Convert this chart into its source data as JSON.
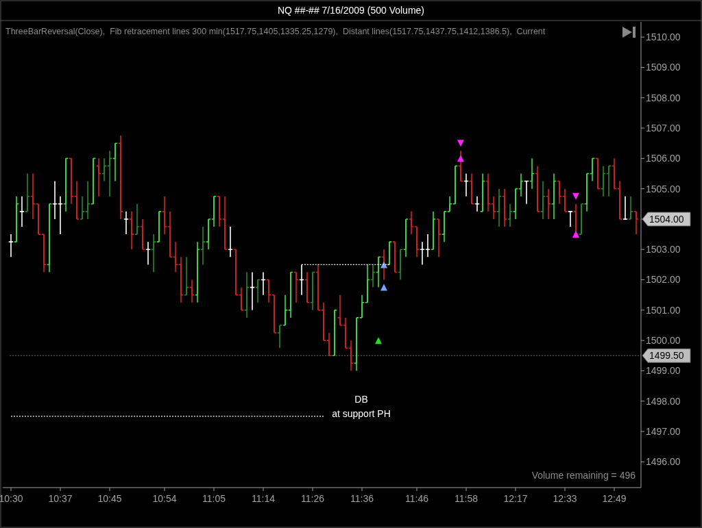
{
  "chart_data": {
    "type": "candlestick",
    "title": "NQ ##-##  7/16/2009 (500 Volume)",
    "subtitle": "ThreeBarReversal(Close),  Fib retracement lines 300 min(1517.75,1405,1335.25,1279),  Distant lines(1517.75,1437.75,1412,1386.5),  Current",
    "categories": [
      "10:30",
      null,
      null,
      null,
      null,
      null,
      null,
      null,
      null,
      "10:37",
      null,
      null,
      null,
      null,
      null,
      null,
      null,
      null,
      "10:45",
      null,
      null,
      null,
      null,
      null,
      null,
      null,
      null,
      null,
      "10:54",
      null,
      null,
      null,
      null,
      null,
      null,
      null,
      null,
      "11:05",
      null,
      null,
      null,
      null,
      null,
      null,
      null,
      null,
      "11:14",
      null,
      null,
      null,
      null,
      null,
      null,
      null,
      null,
      "11:26",
      null,
      null,
      null,
      null,
      null,
      null,
      null,
      null,
      "11:36",
      null,
      null,
      null,
      null,
      null,
      null,
      null,
      null,
      null,
      "11:46",
      null,
      null,
      null,
      null,
      null,
      null,
      null,
      null,
      "11:58",
      null,
      null,
      null,
      null,
      null,
      null,
      null,
      null,
      "12:17",
      null,
      null,
      null,
      null,
      null,
      null,
      null,
      null,
      "12:33",
      null,
      null,
      null,
      null,
      null,
      null,
      null,
      null,
      "12:49",
      null,
      null,
      null,
      null
    ],
    "ohlc": [
      [
        1503.25,
        1503.5,
        1502.75,
        1503.25
      ],
      [
        1503.25,
        1504.75,
        1503.25,
        1504.5
      ],
      [
        1504.25,
        1504.75,
        1503.75,
        1504.25
      ],
      [
        1504.25,
        1505.5,
        1504.25,
        1504.75
      ],
      [
        1504.75,
        1505.5,
        1504,
        1504.5
      ],
      [
        1504.5,
        1504.5,
        1503.5,
        1503.5
      ],
      [
        1503.5,
        1503.5,
        1502.25,
        1502.5
      ],
      [
        1502.5,
        1504.5,
        1502.25,
        1504.5
      ],
      [
        1504.5,
        1505.25,
        1504,
        1504.5
      ],
      [
        1504.5,
        1504.75,
        1503.5,
        1504.5
      ],
      [
        1504.5,
        1506,
        1504.25,
        1506
      ],
      [
        1506,
        1506,
        1504.5,
        1504.75
      ],
      [
        1504.75,
        1505.25,
        1504,
        1504
      ],
      [
        1504,
        1504.75,
        1504,
        1504.25
      ],
      [
        1504.25,
        1505.25,
        1504,
        1504.5
      ],
      [
        1504.5,
        1506,
        1504.5,
        1506
      ],
      [
        1505.75,
        1506,
        1504.75,
        1505.5
      ],
      [
        1505.5,
        1506,
        1505.25,
        1505.75
      ],
      [
        1505.75,
        1506.25,
        1504.75,
        1506
      ],
      [
        1506,
        1506.5,
        1505.25,
        1506.5
      ],
      [
        1506.5,
        1506.75,
        1504,
        1504.25
      ],
      [
        1504,
        1504.25,
        1503.5,
        1504
      ],
      [
        1504,
        1504.25,
        1503,
        1503.5
      ],
      [
        1503.5,
        1504.5,
        1503.5,
        1503.75
      ],
      [
        1503.75,
        1504,
        1503,
        1503
      ],
      [
        1503,
        1503.25,
        1502.5,
        1503
      ],
      [
        1503,
        1503.5,
        1502.25,
        1503.25
      ],
      [
        1503.25,
        1504.25,
        1503.25,
        1504.25
      ],
      [
        1504.25,
        1504.75,
        1503.5,
        1503.75
      ],
      [
        1503.75,
        1504.25,
        1502.75,
        1502.75
      ],
      [
        1502.75,
        1503.25,
        1502.25,
        1502.5
      ],
      [
        1502.5,
        1502.75,
        1501.25,
        1501.5
      ],
      [
        1501.5,
        1502.75,
        1501.5,
        1501.75
      ],
      [
        1501.75,
        1502,
        1501.25,
        1501.5
      ],
      [
        1501.5,
        1503.25,
        1501.25,
        1503
      ],
      [
        1503,
        1503.75,
        1502.5,
        1503.25
      ],
      [
        1503.25,
        1504,
        1503,
        1504
      ],
      [
        1504,
        1504.75,
        1503.75,
        1504.75
      ],
      [
        1504.75,
        1504.75,
        1503.75,
        1504
      ],
      [
        1504,
        1504.75,
        1503,
        1503
      ],
      [
        1503,
        1503.75,
        1502.75,
        1503
      ],
      [
        1503,
        1503,
        1501.5,
        1501.5
      ],
      [
        1501.5,
        1501.75,
        1501,
        1501
      ],
      [
        1501,
        1502.25,
        1500.75,
        1501.75
      ],
      [
        1501.75,
        1502.25,
        1501,
        1501.75
      ],
      [
        1501.75,
        1502,
        1501.25,
        1502
      ],
      [
        1502,
        1502.25,
        1501.5,
        1502
      ],
      [
        1502,
        1502,
        1501.25,
        1501.5
      ],
      [
        1501.5,
        1501.5,
        1500.25,
        1500.25
      ],
      [
        1500.25,
        1500.5,
        1499.75,
        1500.5
      ],
      [
        1500.5,
        1501.5,
        1500.5,
        1501
      ],
      [
        1501,
        1502.25,
        1500.75,
        1502.25
      ],
      [
        1502.25,
        1502.25,
        1501.25,
        1502
      ],
      [
        1502,
        1502.5,
        1501.5,
        1502
      ],
      [
        1502,
        1502.25,
        1501.25,
        1501.25
      ],
      [
        1501.25,
        1502.25,
        1501,
        1502.25
      ],
      [
        1502.25,
        1502.5,
        1501,
        1501
      ],
      [
        1501,
        1501.25,
        1500,
        1500
      ],
      [
        1500,
        1500.25,
        1499.5,
        1499.5
      ],
      [
        1499.5,
        1501,
        1499.5,
        1501
      ],
      [
        1500.75,
        1501.5,
        1500.5,
        1500.5
      ],
      [
        1500.5,
        1500.75,
        1499.75,
        1499.75
      ],
      [
        1499.75,
        1500,
        1499,
        1499.25
      ],
      [
        1499.25,
        1500.75,
        1499,
        1500.75
      ],
      [
        1500.75,
        1501.5,
        1500.75,
        1501.25
      ],
      [
        1501.25,
        1502.5,
        1501.25,
        1502
      ],
      [
        1502,
        1502.5,
        1501.75,
        1502.25
      ],
      [
        1502.25,
        1502.75,
        1501.75,
        1502.75
      ],
      [
        1502.75,
        1503,
        1502,
        1502.5
      ],
      [
        1502.5,
        1503.25,
        1502.5,
        1503.25
      ],
      [
        1503.25,
        1503.25,
        1502.25,
        1502.25
      ],
      [
        1502.25,
        1503,
        1502,
        1503
      ],
      [
        1503,
        1504,
        1502.75,
        1504
      ],
      [
        1504,
        1504.25,
        1503.5,
        1503.75
      ],
      [
        1503.75,
        1503.75,
        1502.75,
        1503
      ],
      [
        1503,
        1503.25,
        1502.5,
        1503
      ],
      [
        1503,
        1503.5,
        1502.75,
        1503
      ],
      [
        1503,
        1504.25,
        1503,
        1504
      ],
      [
        1504,
        1504,
        1502.75,
        1503.5
      ],
      [
        1503.5,
        1504.25,
        1503.25,
        1504.25
      ],
      [
        1504.25,
        1504.75,
        1504.25,
        1504.5
      ],
      [
        1504.5,
        1505.75,
        1504.5,
        1505.75
      ],
      [
        1505.75,
        1506.25,
        1505.25,
        1505.25
      ],
      [
        1505.25,
        1505.5,
        1504.75,
        1505.25
      ],
      [
        1505.25,
        1505.5,
        1504.5,
        1504.5
      ],
      [
        1504.5,
        1504.75,
        1504.25,
        1504.5
      ],
      [
        1504.25,
        1505.5,
        1504.25,
        1505.25
      ],
      [
        1505.25,
        1505.5,
        1504.25,
        1504.5
      ],
      [
        1504.5,
        1504.75,
        1504,
        1504.25
      ],
      [
        1504.25,
        1505,
        1503.75,
        1504.75
      ],
      [
        1504.75,
        1505,
        1503.75,
        1504
      ],
      [
        1504,
        1504.5,
        1503.75,
        1504.25
      ],
      [
        1504.25,
        1505,
        1504,
        1505
      ],
      [
        1505,
        1505.5,
        1504.75,
        1505.25
      ],
      [
        1505.25,
        1505.25,
        1504.5,
        1505.25
      ],
      [
        1505.25,
        1506,
        1505,
        1505.5
      ],
      [
        1505.5,
        1505.75,
        1504.25,
        1504.25
      ],
      [
        1504.25,
        1505.25,
        1504,
        1504.75
      ],
      [
        1504.75,
        1505,
        1504,
        1504.5
      ],
      [
        1504.5,
        1505.5,
        1504,
        1505.25
      ],
      [
        1505.25,
        1505.25,
        1504.5,
        1504.75
      ],
      [
        1504.75,
        1505,
        1504.25,
        1504.25
      ],
      [
        1504.25,
        1504.25,
        1503.75,
        1504.25
      ],
      [
        1504.25,
        1504.5,
        1503.5,
        1503.5
      ],
      [
        1503.5,
        1504.5,
        1503.5,
        1504.5
      ],
      [
        1504.5,
        1505.5,
        1504.25,
        1505.5
      ],
      [
        1505.5,
        1506,
        1505.25,
        1506
      ],
      [
        1506,
        1506,
        1505,
        1505
      ],
      [
        1505,
        1505.75,
        1504.75,
        1505.5
      ],
      [
        1505.5,
        1505.75,
        1504.75,
        1505.75
      ],
      [
        1505.75,
        1506,
        1505,
        1505
      ],
      [
        1505,
        1505.25,
        1504,
        1504
      ],
      [
        1504,
        1504.75,
        1504,
        1504
      ],
      [
        1504,
        1504.75,
        1504,
        1504.25
      ],
      [
        1504.25,
        1504.25,
        1503.5,
        1504
      ]
    ],
    "colors": [
      "#ffffff",
      "#32e632",
      "#ffffff",
      "#228b22",
      "#dc1e1e",
      "#dc1e1e",
      "#dc1e1e",
      "#32e632",
      "#ffffff",
      "#ffffff",
      "#32e632",
      "#dc1e1e",
      "#dc1e1e",
      "#228b22",
      "#228b22",
      "#32e632",
      "#dc1e1e",
      "#228b22",
      "#228b22",
      "#32e632",
      "#dc1e1e",
      "#ffffff",
      "#dc1e1e",
      "#228b22",
      "#dc1e1e",
      "#ffffff",
      "#228b22",
      "#32e632",
      "#dc1e1e",
      "#dc1e1e",
      "#dc1e1e",
      "#dc1e1e",
      "#228b22",
      "#dc1e1e",
      "#32e632",
      "#228b22",
      "#32e632",
      "#32e632",
      "#dc1e1e",
      "#dc1e1e",
      "#ffffff",
      "#dc1e1e",
      "#dc1e1e",
      "#228b22",
      "#ffffff",
      "#228b22",
      "#ffffff",
      "#dc1e1e",
      "#dc1e1e",
      "#228b22",
      "#32e632",
      "#32e632",
      "#dc1e1e",
      "#ffffff",
      "#dc1e1e",
      "#228b22",
      "#dc1e1e",
      "#dc1e1e",
      "#dc1e1e",
      "#32e632",
      "#dc1e1e",
      "#dc1e1e",
      "#dc1e1e",
      "#32e632",
      "#32e632",
      "#32e632",
      "#228b22",
      "#32e632",
      "#dc1e1e",
      "#32e632",
      "#dc1e1e",
      "#228b22",
      "#32e632",
      "#dc1e1e",
      "#dc1e1e",
      "#ffffff",
      "#ffffff",
      "#32e632",
      "#dc1e1e",
      "#32e632",
      "#32e632",
      "#32e632",
      "#dc1e1e",
      "#ffffff",
      "#dc1e1e",
      "#ffffff",
      "#32e632",
      "#dc1e1e",
      "#dc1e1e",
      "#228b22",
      "#dc1e1e",
      "#228b22",
      "#32e632",
      "#32e632",
      "#ffffff",
      "#32e632",
      "#dc1e1e",
      "#228b22",
      "#dc1e1e",
      "#32e632",
      "#dc1e1e",
      "#dc1e1e",
      "#ffffff",
      "#dc1e1e",
      "#228b22",
      "#32e632",
      "#32e632",
      "#dc1e1e",
      "#228b22",
      "#228b22",
      "#dc1e1e",
      "#dc1e1e",
      "#ffffff",
      "#228b22",
      "#dc1e1e"
    ],
    "series": [
      {
        "type": "line",
        "color": "#ffffff",
        "line_style": "dotted",
        "values": [
          null,
          null,
          null,
          null,
          null,
          null,
          null,
          null,
          null,
          null,
          null,
          null,
          null,
          null,
          null,
          null,
          null,
          null,
          null,
          null,
          null,
          null,
          null,
          null,
          null,
          null,
          null,
          null,
          null,
          null,
          null,
          null,
          null,
          null,
          null,
          null,
          null,
          null,
          null,
          null,
          null,
          null,
          null,
          null,
          null,
          null,
          null,
          null,
          null,
          null,
          null,
          null,
          null,
          1502.5,
          1502.5,
          1502.5,
          1502.5,
          1502.5,
          1502.5,
          1502.5,
          1502.5,
          1502.5,
          1502.5,
          1502.5,
          1502.5,
          1502.5,
          1502.5,
          1502.5,
          1502.5,
          1502.5,
          null,
          null,
          null,
          null,
          null,
          null,
          null,
          null,
          null,
          null,
          null,
          null,
          null,
          null,
          null,
          null,
          null,
          null,
          null,
          null,
          null,
          null,
          null,
          null,
          null,
          null,
          null,
          null,
          null,
          null,
          null,
          null,
          null,
          null,
          null,
          null,
          null,
          null,
          null,
          null,
          null,
          null,
          null,
          null,
          null
        ]
      },
      {
        "type": "line",
        "color": "#ffffff",
        "line_style": "dotted",
        "values": [
          1497.5,
          1497.5,
          1497.5,
          1497.5,
          1497.5,
          1497.5,
          1497.5,
          1497.5,
          1497.5,
          1497.5,
          1497.5,
          1497.5,
          1497.5,
          1497.5,
          1497.5,
          1497.5,
          1497.5,
          1497.5,
          1497.5,
          1497.5,
          1497.5,
          1497.5,
          1497.5,
          1497.5,
          1497.5,
          1497.5,
          1497.5,
          1497.5,
          1497.5,
          1497.5,
          1497.5,
          1497.5,
          1497.5,
          1497.5,
          1497.5,
          1497.5,
          1497.5,
          1497.5,
          1497.5,
          1497.5,
          1497.5,
          1497.5,
          1497.5,
          1497.5,
          1497.5,
          1497.5,
          1497.5,
          1497.5,
          1497.5,
          1497.5,
          1497.5,
          1497.5,
          1497.5,
          1497.5,
          1497.5,
          1497.5,
          1497.5,
          1497.5,
          null,
          null,
          null,
          null,
          null,
          null,
          null,
          null,
          null,
          null,
          null,
          null,
          null,
          null,
          null,
          null,
          null,
          null,
          null,
          null,
          null,
          null,
          null,
          null,
          null,
          null,
          null,
          null,
          null,
          null,
          null,
          null,
          null,
          null,
          null,
          null,
          null,
          null,
          null,
          null,
          null,
          null,
          null,
          null,
          null,
          null,
          null,
          null,
          null,
          null,
          null,
          null,
          null,
          null,
          null,
          null,
          null
        ]
      },
      {
        "type": "scatter",
        "marker": "triangle",
        "color": "#22dd22",
        "values": [
          null,
          null,
          null,
          null,
          null,
          null,
          null,
          null,
          null,
          null,
          null,
          null,
          null,
          null,
          null,
          null,
          null,
          null,
          null,
          null,
          null,
          null,
          null,
          null,
          null,
          null,
          null,
          null,
          null,
          null,
          null,
          null,
          null,
          null,
          null,
          null,
          null,
          null,
          null,
          null,
          null,
          null,
          null,
          null,
          null,
          null,
          null,
          null,
          null,
          null,
          null,
          null,
          null,
          null,
          null,
          null,
          null,
          null,
          null,
          null,
          null,
          null,
          null,
          null,
          null,
          null,
          null,
          1500,
          null,
          null,
          null,
          null,
          null,
          null,
          null,
          null,
          null,
          null,
          null,
          null,
          null,
          null,
          null,
          null,
          null,
          null,
          null,
          null,
          null,
          null,
          null,
          null,
          null,
          null,
          null,
          null,
          null,
          null,
          null,
          null,
          null,
          null,
          null,
          null,
          null,
          null,
          null,
          null,
          null,
          null,
          null,
          null,
          null,
          null,
          null
        ]
      },
      {
        "type": "scatter",
        "marker": "triangle",
        "color": "#6fa8ff",
        "values": [
          null,
          null,
          null,
          null,
          null,
          null,
          null,
          null,
          null,
          null,
          null,
          null,
          null,
          null,
          null,
          null,
          null,
          null,
          null,
          null,
          null,
          null,
          null,
          null,
          null,
          null,
          null,
          null,
          null,
          null,
          null,
          null,
          null,
          null,
          null,
          null,
          null,
          null,
          null,
          null,
          null,
          null,
          null,
          null,
          null,
          null,
          null,
          null,
          null,
          null,
          null,
          null,
          null,
          null,
          null,
          null,
          null,
          null,
          null,
          null,
          null,
          null,
          null,
          null,
          null,
          null,
          null,
          null,
          1501.75,
          null,
          null,
          null,
          null,
          null,
          null,
          null,
          null,
          null,
          null,
          null,
          null,
          null,
          null,
          null,
          null,
          null,
          null,
          null,
          null,
          null,
          null,
          null,
          null,
          null,
          null,
          null,
          null,
          null,
          null,
          null,
          null,
          null,
          null,
          null,
          null,
          null,
          null,
          null,
          null,
          null,
          null,
          null,
          null,
          null,
          null
        ]
      },
      {
        "type": "scatter",
        "marker": "triangle",
        "color": "#ff22ff",
        "values": [
          null,
          null,
          null,
          null,
          null,
          null,
          null,
          null,
          null,
          null,
          null,
          null,
          null,
          null,
          null,
          null,
          null,
          null,
          null,
          null,
          null,
          null,
          null,
          null,
          null,
          null,
          null,
          null,
          null,
          null,
          null,
          null,
          null,
          null,
          null,
          null,
          null,
          null,
          null,
          null,
          null,
          null,
          null,
          null,
          null,
          null,
          null,
          null,
          null,
          null,
          null,
          null,
          null,
          null,
          null,
          null,
          null,
          null,
          null,
          null,
          null,
          null,
          null,
          null,
          null,
          null,
          null,
          null,
          null,
          null,
          null,
          null,
          null,
          null,
          null,
          null,
          null,
          null,
          null,
          null,
          null,
          null,
          1506.5,
          null,
          null,
          null,
          null,
          null,
          null,
          null,
          null,
          null,
          null,
          null,
          null,
          null,
          null,
          null,
          null,
          null,
          null,
          null,
          null,
          1504.75,
          null,
          null,
          null,
          null,
          null,
          null,
          null,
          null,
          null,
          null,
          null
        ]
      },
      {
        "type": "scatter",
        "marker": "triangle",
        "color": "#6fa8ff",
        "values": [
          null,
          null,
          null,
          null,
          null,
          null,
          null,
          null,
          null,
          null,
          null,
          null,
          null,
          null,
          null,
          null,
          null,
          null,
          null,
          null,
          null,
          null,
          null,
          null,
          null,
          null,
          null,
          null,
          null,
          null,
          null,
          null,
          null,
          null,
          null,
          null,
          null,
          null,
          null,
          null,
          null,
          null,
          null,
          null,
          null,
          null,
          null,
          null,
          null,
          null,
          null,
          null,
          null,
          null,
          null,
          null,
          null,
          null,
          null,
          null,
          null,
          null,
          null,
          null,
          null,
          null,
          null,
          null,
          1502.5,
          null,
          null,
          null,
          null,
          null,
          null,
          null,
          null,
          null,
          null,
          null,
          null,
          null,
          null,
          null,
          null,
          null,
          null,
          null,
          null,
          null,
          null,
          null,
          null,
          null,
          null,
          null,
          null,
          null,
          null,
          null,
          null,
          null,
          null,
          null,
          null,
          null,
          null,
          null,
          null,
          null,
          null,
          null,
          null,
          null,
          null
        ]
      },
      {
        "type": "scatter",
        "marker": "triangle",
        "color": "#ff22ff",
        "values": [
          null,
          null,
          null,
          null,
          null,
          null,
          null,
          null,
          null,
          null,
          null,
          null,
          null,
          null,
          null,
          null,
          null,
          null,
          null,
          null,
          null,
          null,
          null,
          null,
          null,
          null,
          null,
          null,
          null,
          null,
          null,
          null,
          null,
          null,
          null,
          null,
          null,
          null,
          null,
          null,
          null,
          null,
          null,
          null,
          null,
          null,
          null,
          null,
          null,
          null,
          null,
          null,
          null,
          null,
          null,
          null,
          null,
          null,
          null,
          null,
          null,
          null,
          null,
          null,
          null,
          null,
          null,
          null,
          null,
          null,
          null,
          null,
          null,
          null,
          null,
          null,
          null,
          null,
          null,
          null,
          null,
          null,
          1506,
          null,
          null,
          null,
          null,
          null,
          null,
          null,
          null,
          null,
          null,
          null,
          null,
          null,
          null,
          null,
          null,
          null,
          null,
          null,
          null,
          1503.5,
          null,
          null,
          null,
          null,
          null,
          null,
          null,
          null,
          null,
          null,
          null
        ]
      }
    ],
    "ylim": [
      1495.15,
      1510.5
    ],
    "yticks": [
      {
        "value": 1496,
        "label": "1496.00"
      },
      {
        "value": 1497,
        "label": "1497.00"
      },
      {
        "value": 1498,
        "label": "1498.00"
      },
      {
        "value": 1499,
        "label": "1499.00"
      },
      {
        "value": 1500,
        "label": "1500.00"
      },
      {
        "value": 1501,
        "label": "1501.00"
      },
      {
        "value": 1502,
        "label": "1502.00"
      },
      {
        "value": 1503,
        "label": "1503.00"
      },
      {
        "value": 1504,
        "label": null
      },
      {
        "value": 1505,
        "label": "1505.00"
      },
      {
        "value": 1506,
        "label": "1506.00"
      },
      {
        "value": 1507,
        "label": "1507.00"
      },
      {
        "value": 1508,
        "label": "1508.00"
      },
      {
        "value": 1509,
        "label": "1509.00"
      },
      {
        "value": 1510,
        "label": "1510.00"
      }
    ],
    "ref_lines": [
      {
        "axis": "y",
        "value": 1499.5,
        "label": "1499.50",
        "color": "#2e8b2e",
        "line_style": "dotted"
      }
    ],
    "annotations": [
      "DB",
      "at support PH",
      "1504.00",
      "Volume remaining = 496"
    ],
    "grid": false
  }
}
